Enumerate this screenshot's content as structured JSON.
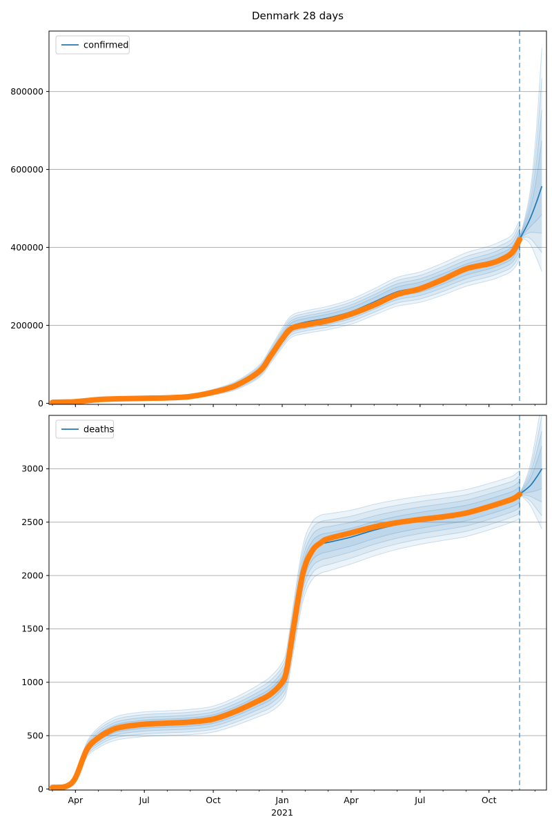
{
  "chart_data": {
    "type": "line",
    "title": "Denmark 28 days",
    "subtitle_meaning": "28 day forecast horizon",
    "colors": {
      "data_dots": "#ff7f0e",
      "model_line": "#1f77b4",
      "band_fill": "#1f77b4",
      "grid": "#b0b0b0",
      "spine": "#000000",
      "forecast_vline": "#1f77b4",
      "text": "#000000",
      "legend_border": "#cccccc"
    },
    "xaxis": {
      "start_month_label": "2020-03",
      "major_ticks": [
        {
          "m": 1,
          "label": "Apr"
        },
        {
          "m": 4,
          "label": "Jul"
        },
        {
          "m": 7,
          "label": "Oct"
        },
        {
          "m": 10,
          "label": "Jan"
        },
        {
          "m": 13,
          "label": "Apr"
        },
        {
          "m": 16,
          "label": "Jul"
        },
        {
          "m": 19,
          "label": "Oct"
        }
      ],
      "year_label": {
        "m": 10,
        "label": "2021"
      },
      "minor_months": [
        0,
        1,
        2,
        3,
        4,
        5,
        6,
        7,
        8,
        9,
        10,
        11,
        12,
        13,
        14,
        15,
        16,
        17,
        18,
        19,
        20,
        21
      ]
    },
    "charts": [
      {
        "name": "confirmed",
        "legend_label": "confirmed",
        "ylim": [
          0,
          955000
        ],
        "yticks": [
          0,
          200000,
          400000,
          600000,
          800000
        ],
        "grid": true,
        "forecast_start_m": 20.33,
        "history": {
          "months": [
            0,
            0.5,
            1,
            2,
            3,
            4,
            5,
            6,
            7,
            8,
            9,
            9.5,
            10,
            10.4,
            11,
            12,
            13,
            14,
            15,
            16,
            17,
            18,
            19,
            19.5,
            20,
            20.33
          ],
          "values": [
            2500,
            3200,
            4000,
            9500,
            11700,
            12900,
            14000,
            17500,
            28500,
            46000,
            82000,
            122000,
            165000,
            192000,
            201000,
            212000,
            229000,
            252000,
            279000,
            294000,
            318000,
            345000,
            358000,
            368000,
            386000,
            420000
          ],
          "spread": [
            1500,
            1800,
            2500,
            3500,
            3800,
            4000,
            4300,
            5200,
            7500,
            11000,
            16000,
            20000,
            25000,
            28000,
            29000,
            30000,
            32000,
            34000,
            37000,
            39000,
            41000,
            43000,
            44000,
            45000,
            46000,
            47000
          ],
          "fit_offset": [
            0,
            0,
            0,
            0,
            0,
            0,
            0,
            0,
            0,
            0,
            0,
            1000,
            3000,
            5000,
            7000,
            7000,
            6000,
            8000,
            7000,
            4000,
            1000,
            -2000,
            1000,
            2000,
            0,
            0
          ]
        },
        "forecast": {
          "months": [
            20.33,
            20.57,
            20.82,
            21.06,
            21.3
          ],
          "median": [
            421000,
            447000,
            478000,
            515000,
            557000
          ],
          "upper": [
            430000,
            478000,
            556000,
            700000,
            912000
          ],
          "lower": [
            412000,
            420000,
            406000,
            374000,
            338000
          ]
        }
      },
      {
        "name": "deaths",
        "legend_label": "deaths",
        "ylim": [
          0,
          3500
        ],
        "yticks": [
          0,
          500,
          1000,
          1500,
          2000,
          2500,
          3000
        ],
        "grid": true,
        "forecast_start_m": 20.33,
        "history": {
          "months": [
            0,
            0.6,
            1,
            1.5,
            2,
            2.5,
            3,
            4,
            5,
            6,
            7,
            8,
            9,
            9.5,
            10,
            10.2,
            10.5,
            10.9,
            11.3,
            11.7,
            12,
            13,
            14,
            15,
            16,
            17,
            18,
            19,
            20,
            20.33
          ],
          "values": [
            15,
            25,
            105,
            370,
            480,
            545,
            580,
            607,
            617,
            628,
            655,
            730,
            830,
            890,
            1000,
            1120,
            1520,
            2020,
            2230,
            2310,
            2345,
            2400,
            2455,
            2495,
            2525,
            2550,
            2585,
            2645,
            2715,
            2760
          ],
          "spread": [
            5,
            8,
            30,
            70,
            95,
            105,
            112,
            116,
            116,
            118,
            122,
            132,
            150,
            165,
            185,
            200,
            230,
            260,
            270,
            272,
            268,
            252,
            242,
            232,
            226,
            222,
            220,
            218,
            214,
            210
          ],
          "fit_offset": [
            0,
            0,
            0,
            0,
            0,
            0,
            0,
            0,
            0,
            0,
            0,
            0,
            0,
            0,
            0,
            0,
            0,
            0,
            0,
            -15,
            -35,
            -40,
            -30,
            -18,
            -8,
            0,
            0,
            0,
            0,
            0
          ]
        },
        "forecast": {
          "months": [
            20.33,
            20.57,
            20.82,
            21.06,
            21.3
          ],
          "median": [
            2762,
            2800,
            2848,
            2918,
            3000
          ],
          "upper": [
            2786,
            2886,
            3060,
            3330,
            3640
          ],
          "lower": [
            2740,
            2714,
            2650,
            2545,
            2435
          ]
        }
      }
    ],
    "band_levels": [
      1.0,
      0.78,
      0.55,
      0.33
    ],
    "legend_position": "upper left"
  }
}
